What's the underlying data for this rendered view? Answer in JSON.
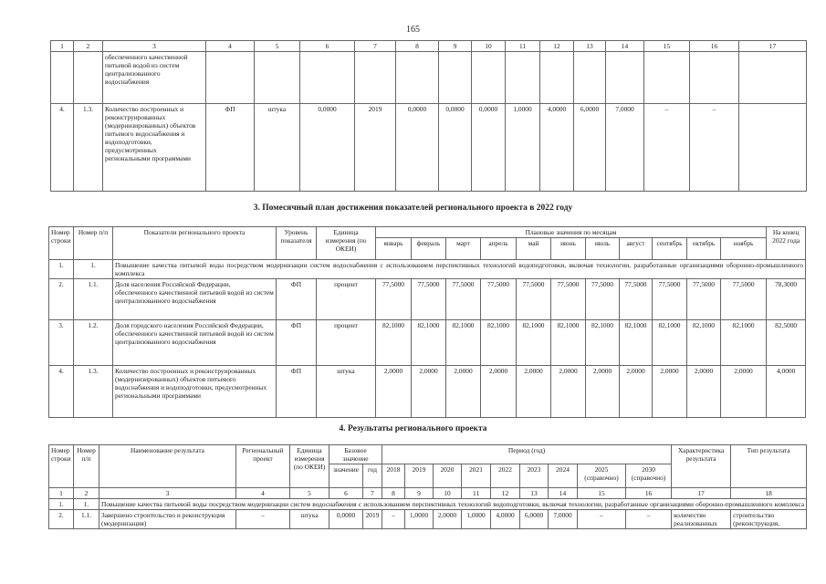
{
  "page_number": "165",
  "t1": {
    "col_numbers": [
      "1",
      "2",
      "3",
      "4",
      "5",
      "6",
      "7",
      "8",
      "9",
      "10",
      "11",
      "12",
      "13",
      "14",
      "15",
      "16",
      "17"
    ],
    "rows": [
      [
        "",
        "",
        "обеспеченного качественной питьевой водой из систем централизованного водоснабжения",
        "",
        "",
        "",
        "",
        "",
        "",
        "",
        "",
        "",
        "",
        "",
        "",
        "",
        ""
      ],
      [
        "4.",
        "1.3.",
        "Количество построенных и реконструированных (модернизированных) объектов питьевого водоснабжения и водоподготовки, предусмотренных региональными программами",
        "ФП",
        "штука",
        "0,0000",
        "2019",
        "0,0000",
        "0,0000",
        "0,0000",
        "1,0000",
        "4,0000",
        "6,0000",
        "7,0000",
        "–",
        "–",
        ""
      ]
    ]
  },
  "s3": {
    "title": "3. Помесячный план достижения показателей регионального проекта в 2022 году",
    "h_row": "Номер строки",
    "h_pp": "Номер п/п",
    "h_ind": "Показатели регионального проекта",
    "h_level": "Уровень показателя",
    "h_unit": "Единица измерения (по ОКЕИ)",
    "h_plan": "Плановые значения по месяцам",
    "h_end": "На конец 2022 года",
    "months": [
      "январь",
      "февраль",
      "март",
      "апрель",
      "май",
      "июнь",
      "июль",
      "август",
      "сентябрь",
      "октябрь",
      "ноябрь"
    ],
    "goal": {
      "num": "1.",
      "pp": "1.",
      "text": "Повышение качества питьевой воды посредством модернизации систем водоснабжения с использованием перспективных технологий водоподготовки, включая технологии, разработанные организациями оборонно-промышленного комплекса"
    },
    "rows": [
      {
        "num": "2.",
        "pp": "1.1.",
        "name": "Доля населения Российской Федерации, обеспеченного качественной питьевой водой из систем централизованного водоснабжения",
        "level": "ФП",
        "unit": "процент",
        "values": [
          "77,5000",
          "77,5000",
          "77,5000",
          "77,5000",
          "77,5000",
          "77,5000",
          "77,5000",
          "77,5000",
          "77,5000",
          "77,5000",
          "77,5000"
        ],
        "end": "78,3000"
      },
      {
        "num": "3.",
        "pp": "1.2.",
        "name": "Доля городского населения Российской Федерации, обеспеченного качественной питьевой водой из систем централизованного водоснабжения",
        "level": "ФП",
        "unit": "процент",
        "values": [
          "82,1000",
          "82,1000",
          "82,1000",
          "82,1000",
          "82,1000",
          "82,1000",
          "82,1000",
          "82,1000",
          "82,1000",
          "82,1000",
          "82,1000"
        ],
        "end": "82,5000"
      },
      {
        "num": "4.",
        "pp": "1.3.",
        "name": "Количество построенных и реконструированных (модернизированных) объектов питьевого водоснабжения и водоподготовки, предусмотренных региональными программами",
        "level": "ФП",
        "unit": "штука",
        "values": [
          "2,0000",
          "2,0000",
          "2,0000",
          "2,0000",
          "2,0000",
          "2,0000",
          "2,0000",
          "2,0000",
          "2,0000",
          "2,0000",
          "2,0000"
        ],
        "end": "4,0000"
      }
    ]
  },
  "s4": {
    "title": "4. Результаты регионального проекта",
    "h_row": "Номер строки",
    "h_pp": "Номер п/п",
    "h_name": "Наименование результата",
    "h_proj": "Региональный проект",
    "h_unit": "Единица измерения (по ОКЕИ)",
    "h_base": "Базовое значение",
    "h_val": "значение",
    "h_year": "год",
    "h_period": "Период (год)",
    "years": [
      "2018",
      "2019",
      "2020",
      "2021",
      "2022",
      "2023",
      "2024",
      "2025 (справочно)",
      "2030 (справочно)"
    ],
    "h_char": "Характеристика результата",
    "h_type": "Тип результата",
    "col_numbers": [
      "1",
      "2",
      "3",
      "4",
      "5",
      "6",
      "7",
      "8",
      "9",
      "10",
      "11",
      "12",
      "13",
      "14",
      "15",
      "16",
      "17",
      "18"
    ],
    "goal": {
      "num": "1.",
      "pp": "1.",
      "text": "Повышение качества питьевой воды посредством модернизации систем водоснабжения с использованием перспективных технологий водоподготовки, включая технологии, разработанные организациями оборонно-промышленного комплекса"
    },
    "row": {
      "num": "2.",
      "pp": "1.1.",
      "name": "Завершено строительство и реконструкция (модернизация)",
      "proj": "–",
      "unit": "штука",
      "base": "0,0000",
      "year": "2019",
      "values": [
        "–",
        "1,0000",
        "2,0000",
        "1,0000",
        "4,0000",
        "6,0000",
        "7,0000",
        "–",
        "–"
      ],
      "char": "количество реализованных",
      "type": "строительство (реконструкция,"
    }
  }
}
